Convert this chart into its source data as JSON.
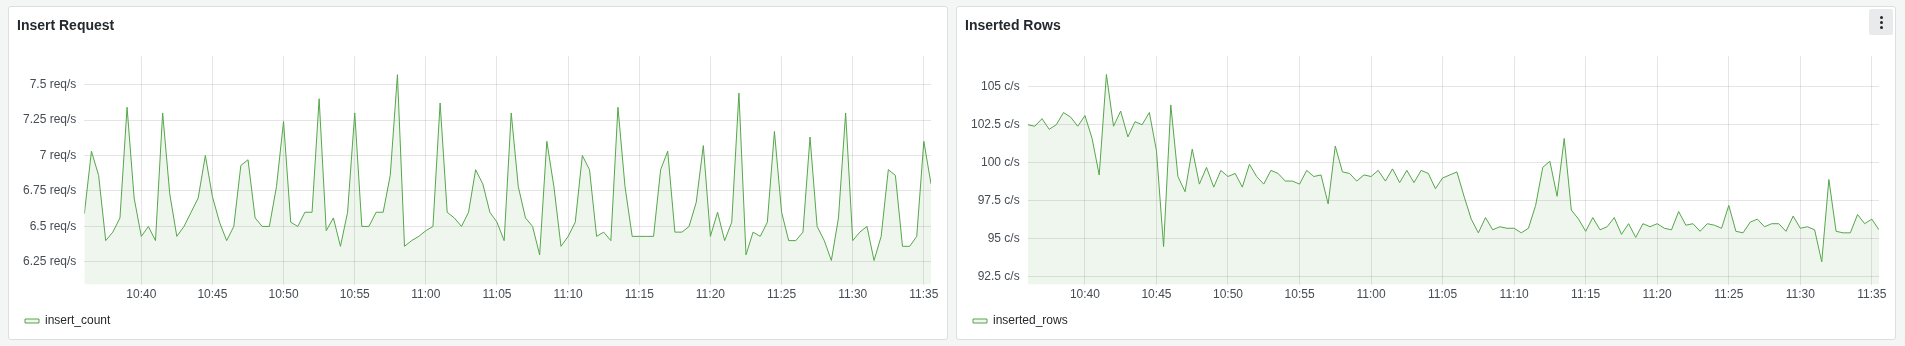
{
  "chart_data": [
    {
      "type": "area",
      "title": "Insert Request",
      "legend": "bottom",
      "grid": true,
      "x": [
        10.6,
        10.6083,
        10.6167,
        10.625,
        10.6333,
        10.6417,
        10.65,
        10.6583,
        10.6667,
        10.675,
        10.6833,
        10.6917,
        10.7,
        10.7083,
        10.7167,
        10.725,
        10.7333,
        10.7417,
        10.75,
        10.7583,
        10.7667,
        10.775,
        10.7833,
        10.7917,
        10.8,
        10.8083,
        10.8167,
        10.825,
        10.8333,
        10.8417,
        10.85,
        10.8583,
        10.8667,
        10.875,
        10.8833,
        10.8917,
        10.9,
        10.9083,
        10.9167,
        10.925,
        10.9333,
        10.9417,
        10.95,
        10.9583,
        10.9667,
        10.975,
        10.9833,
        10.9917,
        11,
        11.0083,
        11.0167,
        11.025,
        11.0333,
        11.0417,
        11.05,
        11.0583,
        11.0667,
        11.075,
        11.0833,
        11.0917,
        11.1,
        11.1083,
        11.1167,
        11.125,
        11.1333,
        11.1417,
        11.15,
        11.1583,
        11.1667,
        11.175,
        11.1833,
        11.1917,
        11.2,
        11.2083,
        11.2167,
        11.225,
        11.2333,
        11.2417,
        11.25,
        11.2583,
        11.2667,
        11.275,
        11.2833,
        11.2917,
        11.3,
        11.3083,
        11.3167,
        11.325,
        11.3333,
        11.3417,
        11.35,
        11.3583,
        11.3667,
        11.375,
        11.3833,
        11.3917,
        11.4,
        11.4083,
        11.4167,
        11.425,
        11.4333,
        11.4417,
        11.45,
        11.4583,
        11.4667,
        11.475,
        11.4833,
        11.4917,
        11.5,
        11.5083,
        11.5167,
        11.525,
        11.5333,
        11.5417,
        11.55,
        11.5583,
        11.5667,
        11.575,
        11.5833,
        11.5917
      ],
      "xlim": [
        10.6,
        11.5917
      ],
      "xticks": [
        {
          "value": 10.6667,
          "label": "10:40"
        },
        {
          "value": 10.75,
          "label": "10:45"
        },
        {
          "value": 10.8333,
          "label": "10:50"
        },
        {
          "value": 10.9167,
          "label": "10:55"
        },
        {
          "value": 11,
          "label": "11:00"
        },
        {
          "value": 11.0833,
          "label": "11:05"
        },
        {
          "value": 11.1667,
          "label": "11:10"
        },
        {
          "value": 11.25,
          "label": "11:15"
        },
        {
          "value": 11.3333,
          "label": "11:20"
        },
        {
          "value": 11.4167,
          "label": "11:25"
        },
        {
          "value": 11.5,
          "label": "11:30"
        },
        {
          "value": 11.5833,
          "label": "11:35"
        }
      ],
      "ylim": [
        6.09,
        7.7
      ],
      "yticks": [
        {
          "value": 6.25,
          "label": "6.25 req/s"
        },
        {
          "value": 6.5,
          "label": "6.5 req/s"
        },
        {
          "value": 6.75,
          "label": "6.75 req/s"
        },
        {
          "value": 7,
          "label": "7 req/s"
        },
        {
          "value": 7.25,
          "label": "7.25 req/s"
        },
        {
          "value": 7.5,
          "label": "7.5 req/s"
        }
      ],
      "series": [
        {
          "name": "insert_count",
          "color": "#56a64b",
          "values": [
            6.59,
            7.03,
            6.86,
            6.4,
            6.46,
            6.56,
            7.34,
            6.7,
            6.43,
            6.5,
            6.4,
            7.3,
            6.73,
            6.43,
            6.5,
            6.6,
            6.7,
            7.0,
            6.71,
            6.53,
            6.4,
            6.5,
            6.93,
            6.97,
            6.56,
            6.5,
            6.5,
            6.78,
            7.24,
            6.53,
            6.5,
            6.6,
            6.6,
            7.4,
            6.47,
            6.56,
            6.36,
            6.6,
            7.3,
            6.5,
            6.5,
            6.6,
            6.6,
            6.86,
            7.57,
            6.36,
            6.4,
            6.43,
            6.47,
            6.5,
            7.37,
            6.6,
            6.56,
            6.5,
            6.6,
            6.9,
            6.8,
            6.6,
            6.53,
            6.4,
            7.3,
            6.78,
            6.56,
            6.5,
            6.3,
            7.1,
            6.78,
            6.36,
            6.43,
            6.53,
            7.0,
            6.9,
            6.43,
            6.46,
            6.4,
            7.34,
            6.78,
            6.43,
            6.43,
            6.43,
            6.43,
            6.9,
            7.03,
            6.46,
            6.46,
            6.5,
            6.67,
            7.07,
            6.43,
            6.6,
            6.4,
            6.53,
            7.44,
            6.3,
            6.46,
            6.43,
            6.53,
            7.17,
            6.6,
            6.4,
            6.4,
            6.46,
            7.13,
            6.5,
            6.4,
            6.26,
            6.56,
            7.3,
            6.4,
            6.46,
            6.5,
            6.26,
            6.43,
            6.9,
            6.86,
            6.36,
            6.36,
            6.43,
            7.1,
            6.8
          ]
        }
      ]
    },
    {
      "type": "area",
      "title": "Inserted Rows",
      "legend": "bottom",
      "grid": true,
      "x": [
        10.6,
        10.6083,
        10.6167,
        10.625,
        10.6333,
        10.6417,
        10.65,
        10.6583,
        10.6667,
        10.675,
        10.6833,
        10.6917,
        10.7,
        10.7083,
        10.7167,
        10.725,
        10.7333,
        10.7417,
        10.75,
        10.7583,
        10.7667,
        10.775,
        10.7833,
        10.7917,
        10.8,
        10.8083,
        10.8167,
        10.825,
        10.8333,
        10.8417,
        10.85,
        10.8583,
        10.8667,
        10.875,
        10.8833,
        10.8917,
        10.9,
        10.9083,
        10.9167,
        10.925,
        10.9333,
        10.9417,
        10.95,
        10.9583,
        10.9667,
        10.975,
        10.9833,
        10.9917,
        11,
        11.0083,
        11.0167,
        11.025,
        11.0333,
        11.0417,
        11.05,
        11.0583,
        11.0667,
        11.075,
        11.0833,
        11.0917,
        11.1,
        11.1083,
        11.1167,
        11.125,
        11.1333,
        11.1417,
        11.15,
        11.1583,
        11.1667,
        11.175,
        11.1833,
        11.1917,
        11.2,
        11.2083,
        11.2167,
        11.225,
        11.2333,
        11.2417,
        11.25,
        11.2583,
        11.2667,
        11.275,
        11.2833,
        11.2917,
        11.3,
        11.3083,
        11.3167,
        11.325,
        11.3333,
        11.3417,
        11.35,
        11.3583,
        11.3667,
        11.375,
        11.3833,
        11.3917,
        11.4,
        11.4083,
        11.4167,
        11.425,
        11.4333,
        11.4417,
        11.45,
        11.4583,
        11.4667,
        11.475,
        11.4833,
        11.4917,
        11.5,
        11.5083,
        11.5167,
        11.525,
        11.5333,
        11.5417,
        11.55,
        11.5583,
        11.5667,
        11.575,
        11.5833,
        11.5917
      ],
      "xlim": [
        10.6,
        11.5917
      ],
      "xticks": [
        {
          "value": 10.6667,
          "label": "10:40"
        },
        {
          "value": 10.75,
          "label": "10:45"
        },
        {
          "value": 10.8333,
          "label": "10:50"
        },
        {
          "value": 10.9167,
          "label": "10:55"
        },
        {
          "value": 11,
          "label": "11:00"
        },
        {
          "value": 11.0833,
          "label": "11:05"
        },
        {
          "value": 11.1667,
          "label": "11:10"
        },
        {
          "value": 11.25,
          "label": "11:15"
        },
        {
          "value": 11.3333,
          "label": "11:20"
        },
        {
          "value": 11.4167,
          "label": "11:25"
        },
        {
          "value": 11.5,
          "label": "11:30"
        },
        {
          "value": 11.5833,
          "label": "11:35"
        }
      ],
      "ylim": [
        92,
        107
      ],
      "yticks": [
        {
          "value": 92.5,
          "label": "92.5 c/s"
        },
        {
          "value": 95,
          "label": "95 c/s"
        },
        {
          "value": 97.5,
          "label": "97.5 c/s"
        },
        {
          "value": 100,
          "label": "100 c/s"
        },
        {
          "value": 102.5,
          "label": "102.5 c/s"
        },
        {
          "value": 105,
          "label": "105 c/s"
        }
      ],
      "series": [
        {
          "name": "inserted_rows",
          "color": "#56a64b",
          "values": [
            102.5,
            102.4,
            102.9,
            102.2,
            102.5,
            103.3,
            103.0,
            102.4,
            103.1,
            101.6,
            99.2,
            105.8,
            102.4,
            103.4,
            101.7,
            102.7,
            102.5,
            103.3,
            100.8,
            94.5,
            103.8,
            99.1,
            98.1,
            100.9,
            98.6,
            99.7,
            98.4,
            99.5,
            99.1,
            99.3,
            98.4,
            99.9,
            99.1,
            98.6,
            99.5,
            99.3,
            98.8,
            98.8,
            98.6,
            99.5,
            99.1,
            99.2,
            97.3,
            101.1,
            99.4,
            99.3,
            98.8,
            99.2,
            99.1,
            99.5,
            98.8,
            99.6,
            98.7,
            99.5,
            98.7,
            99.5,
            99.3,
            98.3,
            99.0,
            99.2,
            99.4,
            97.8,
            96.3,
            95.4,
            96.4,
            95.6,
            95.8,
            95.7,
            95.7,
            95.4,
            95.7,
            97.2,
            99.7,
            100.1,
            97.8,
            101.6,
            96.9,
            96.3,
            95.5,
            96.4,
            95.6,
            95.8,
            96.4,
            95.3,
            96.0,
            95.1,
            96.0,
            95.8,
            96.0,
            95.7,
            95.6,
            96.8,
            95.9,
            96.0,
            95.5,
            96.0,
            95.9,
            95.7,
            97.2,
            95.5,
            95.4,
            96.1,
            96.3,
            95.8,
            96.0,
            96.0,
            95.5,
            96.5,
            95.7,
            95.8,
            95.6,
            93.5,
            98.9,
            95.5,
            95.4,
            95.4,
            96.6,
            96.0,
            96.3,
            95.6
          ]
        }
      ]
    }
  ]
}
